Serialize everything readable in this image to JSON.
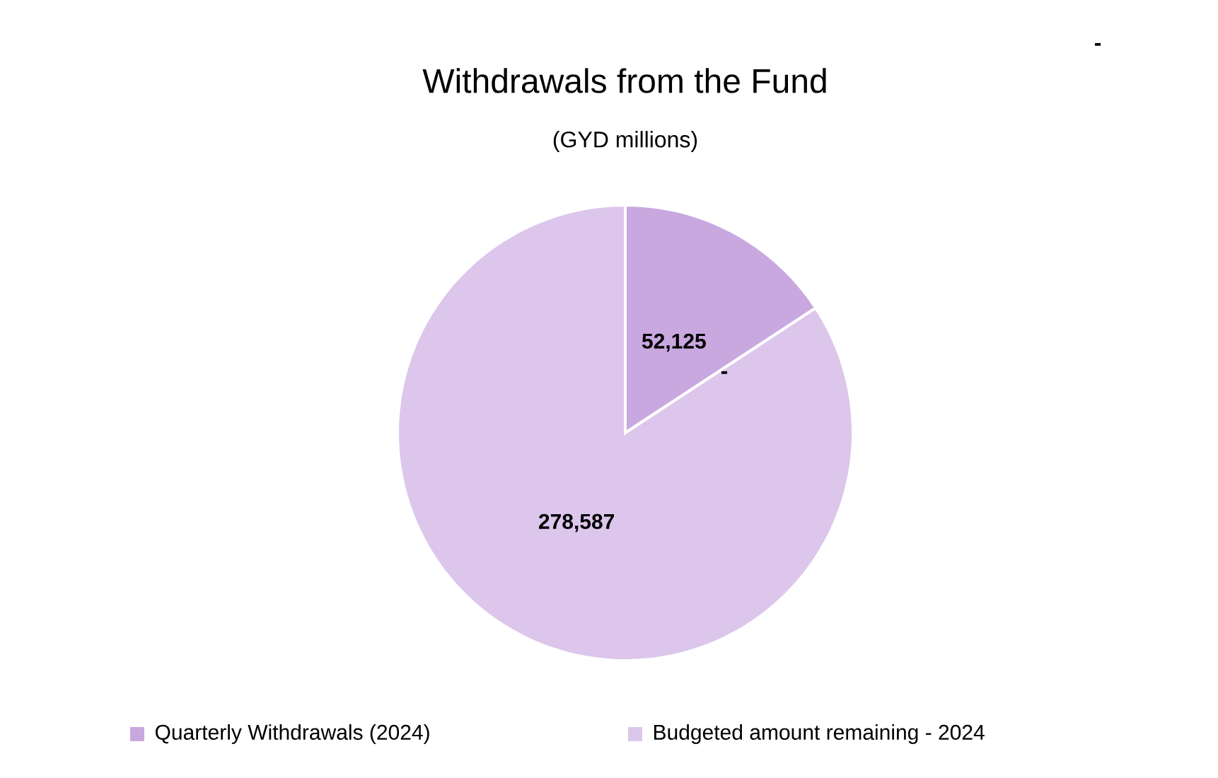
{
  "chart_data": {
    "type": "pie",
    "title": "Withdrawals from the Fund",
    "subtitle": "(GYD millions)",
    "categories": [
      "Quarterly Withdrawals (2024)",
      "Budgeted amount remaining - 2024"
    ],
    "values": [
      52125,
      278587
    ],
    "value_labels": [
      "52,125",
      "278,587"
    ],
    "colors": [
      "#c9a8e0",
      "#dcc6ec"
    ],
    "legend": "bottom",
    "annotations": [
      "-",
      "-"
    ]
  }
}
